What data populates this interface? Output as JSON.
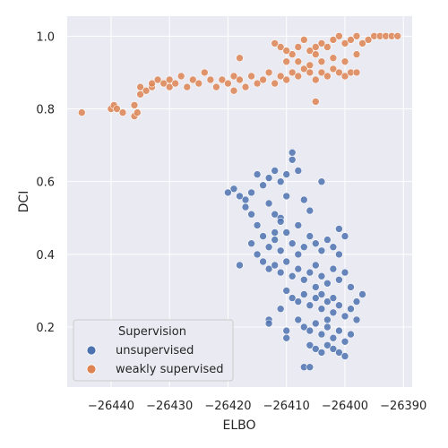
{
  "chart_data": {
    "type": "scatter",
    "title": "",
    "xlabel": "ELBO",
    "ylabel": "DCI",
    "xlim": [
      -26447.5,
      -26388.5
    ],
    "ylim": [
      0.035,
      1.055
    ],
    "xticks": [
      -26440,
      -26430,
      -26420,
      -26410,
      -26400,
      -26390
    ],
    "xtick_labels": [
      "−26440",
      "−26430",
      "−26420",
      "−26410",
      "−26400",
      "−26390"
    ],
    "yticks": [
      0.2,
      0.4,
      0.6,
      0.8,
      1.0
    ],
    "ytick_labels": [
      "0.2",
      "0.4",
      "0.6",
      "0.8",
      "1.0"
    ],
    "grid": true,
    "legend": {
      "title": "Supervision",
      "position": "lower-left"
    },
    "series": [
      {
        "name": "unsupervised",
        "color": "#4c72b0",
        "points": [
          [
            -26419.0,
            0.58
          ],
          [
            -26418.0,
            0.56
          ],
          [
            -26417.0,
            0.55
          ],
          [
            -26416.0,
            0.57
          ],
          [
            -26415.0,
            0.62
          ],
          [
            -26414.0,
            0.59
          ],
          [
            -26413.0,
            0.54
          ],
          [
            -26412.0,
            0.51
          ],
          [
            -26411.0,
            0.5
          ],
          [
            -26411.0,
            0.6
          ],
          [
            -26410.0,
            0.62
          ],
          [
            -26410.0,
            0.56
          ],
          [
            -26409.0,
            0.66
          ],
          [
            -26409.0,
            0.68
          ],
          [
            -26408.0,
            0.63
          ],
          [
            -26407.0,
            0.55
          ],
          [
            -26406.0,
            0.52
          ],
          [
            -26404.0,
            0.6
          ],
          [
            -26412.0,
            0.63
          ],
          [
            -26413.0,
            0.61
          ],
          [
            -26416.0,
            0.51
          ],
          [
            -26415.0,
            0.48
          ],
          [
            -26414.0,
            0.45
          ],
          [
            -26413.0,
            0.42
          ],
          [
            -26412.0,
            0.44
          ],
          [
            -26411.0,
            0.41
          ],
          [
            -26410.0,
            0.46
          ],
          [
            -26409.0,
            0.43
          ],
          [
            -26408.0,
            0.4
          ],
          [
            -26407.0,
            0.42
          ],
          [
            -26406.0,
            0.45
          ],
          [
            -26405.0,
            0.43
          ],
          [
            -26404.0,
            0.41
          ],
          [
            -26403.0,
            0.44
          ],
          [
            -26402.0,
            0.42
          ],
          [
            -26401.0,
            0.4
          ],
          [
            -26414.0,
            0.38
          ],
          [
            -26413.0,
            0.36
          ],
          [
            -26412.0,
            0.37
          ],
          [
            -26411.0,
            0.35
          ],
          [
            -26410.0,
            0.38
          ],
          [
            -26409.0,
            0.34
          ],
          [
            -26408.0,
            0.36
          ],
          [
            -26407.0,
            0.33
          ],
          [
            -26406.0,
            0.35
          ],
          [
            -26405.0,
            0.37
          ],
          [
            -26404.0,
            0.34
          ],
          [
            -26403.0,
            0.32
          ],
          [
            -26402.0,
            0.36
          ],
          [
            -26401.0,
            0.33
          ],
          [
            -26400.0,
            0.35
          ],
          [
            -26399.0,
            0.31
          ],
          [
            -26410.0,
            0.3
          ],
          [
            -26409.0,
            0.28
          ],
          [
            -26408.0,
            0.27
          ],
          [
            -26407.0,
            0.29
          ],
          [
            -26406.0,
            0.26
          ],
          [
            -26405.0,
            0.28
          ],
          [
            -26404.0,
            0.25
          ],
          [
            -26403.0,
            0.27
          ],
          [
            -26402.0,
            0.24
          ],
          [
            -26401.0,
            0.26
          ],
          [
            -26400.0,
            0.23
          ],
          [
            -26399.0,
            0.25
          ],
          [
            -26398.0,
            0.27
          ],
          [
            -26397.0,
            0.29
          ],
          [
            -26408.0,
            0.22
          ],
          [
            -26407.0,
            0.2
          ],
          [
            -26406.0,
            0.19
          ],
          [
            -26405.0,
            0.21
          ],
          [
            -26404.0,
            0.18
          ],
          [
            -26403.0,
            0.2
          ],
          [
            -26402.0,
            0.17
          ],
          [
            -26401.0,
            0.19
          ],
          [
            -26400.0,
            0.16
          ],
          [
            -26399.0,
            0.18
          ],
          [
            -26398.0,
            0.22
          ],
          [
            -26406.0,
            0.15
          ],
          [
            -26405.0,
            0.14
          ],
          [
            -26404.0,
            0.13
          ],
          [
            -26403.0,
            0.15
          ],
          [
            -26402.0,
            0.14
          ],
          [
            -26401.0,
            0.13
          ],
          [
            -26400.0,
            0.12
          ],
          [
            -26407.0,
            0.09
          ],
          [
            -26406.0,
            0.09
          ],
          [
            -26413.0,
            0.22
          ],
          [
            -26413.0,
            0.21
          ],
          [
            -26410.0,
            0.19
          ],
          [
            -26410.0,
            0.17
          ],
          [
            -26411.0,
            0.25
          ],
          [
            -26418.0,
            0.37
          ],
          [
            -26420.0,
            0.57
          ],
          [
            -26417.0,
            0.53
          ],
          [
            -26416.0,
            0.43
          ],
          [
            -26415.0,
            0.4
          ],
          [
            -26412.0,
            0.46
          ],
          [
            -26411.0,
            0.49
          ],
          [
            -26408.0,
            0.48
          ],
          [
            -26405.0,
            0.31
          ],
          [
            -26404.0,
            0.29
          ],
          [
            -26403.0,
            0.22
          ],
          [
            -26402.0,
            0.28
          ],
          [
            -26400.0,
            0.45
          ],
          [
            -26401.0,
            0.47
          ]
        ]
      },
      {
        "name": "weakly supervised",
        "color": "#dd8452",
        "points": [
          [
            -26445.0,
            0.79
          ],
          [
            -26440.0,
            0.8
          ],
          [
            -26439.5,
            0.81
          ],
          [
            -26439.0,
            0.8
          ],
          [
            -26438.0,
            0.79
          ],
          [
            -26436.0,
            0.78
          ],
          [
            -26435.5,
            0.79
          ],
          [
            -26436.0,
            0.81
          ],
          [
            -26435.0,
            0.84
          ],
          [
            -26435.0,
            0.86
          ],
          [
            -26434.0,
            0.85
          ],
          [
            -26433.0,
            0.86
          ],
          [
            -26433.0,
            0.87
          ],
          [
            -26432.0,
            0.88
          ],
          [
            -26431.0,
            0.87
          ],
          [
            -26430.0,
            0.86
          ],
          [
            -26430.0,
            0.88
          ],
          [
            -26429.0,
            0.87
          ],
          [
            -26428.0,
            0.89
          ],
          [
            -26427.0,
            0.86
          ],
          [
            -26426.0,
            0.88
          ],
          [
            -26425.0,
            0.87
          ],
          [
            -26424.0,
            0.9
          ],
          [
            -26423.0,
            0.88
          ],
          [
            -26422.0,
            0.86
          ],
          [
            -26421.0,
            0.88
          ],
          [
            -26420.0,
            0.87
          ],
          [
            -26419.0,
            0.89
          ],
          [
            -26418.0,
            0.88
          ],
          [
            -26417.0,
            0.86
          ],
          [
            -26416.0,
            0.89
          ],
          [
            -26415.0,
            0.87
          ],
          [
            -26414.0,
            0.88
          ],
          [
            -26413.0,
            0.9
          ],
          [
            -26412.0,
            0.87
          ],
          [
            -26411.0,
            0.89
          ],
          [
            -26410.0,
            0.88
          ],
          [
            -26409.0,
            0.9
          ],
          [
            -26408.0,
            0.89
          ],
          [
            -26407.0,
            0.91
          ],
          [
            -26406.0,
            0.9
          ],
          [
            -26405.0,
            0.88
          ],
          [
            -26404.0,
            0.9
          ],
          [
            -26403.0,
            0.89
          ],
          [
            -26402.0,
            0.91
          ],
          [
            -26401.0,
            0.9
          ],
          [
            -26400.0,
            0.89
          ],
          [
            -26399.0,
            0.9
          ],
          [
            -26398.0,
            0.9
          ],
          [
            -26418.0,
            0.94
          ],
          [
            -26412.0,
            0.98
          ],
          [
            -26411.0,
            0.97
          ],
          [
            -26410.0,
            0.93
          ],
          [
            -26409.0,
            0.95
          ],
          [
            -26408.0,
            0.97
          ],
          [
            -26407.0,
            0.99
          ],
          [
            -26406.0,
            0.96
          ],
          [
            -26405.0,
            0.95
          ],
          [
            -26404.0,
            0.98
          ],
          [
            -26403.0,
            0.97
          ],
          [
            -26402.0,
            0.99
          ],
          [
            -26401.0,
            1.0
          ],
          [
            -26400.0,
            0.98
          ],
          [
            -26399.0,
            0.99
          ],
          [
            -26398.0,
            1.0
          ],
          [
            -26397.0,
            0.98
          ],
          [
            -26396.0,
            0.99
          ],
          [
            -26395.0,
            1.0
          ],
          [
            -26394.0,
            1.0
          ],
          [
            -26393.0,
            1.0
          ],
          [
            -26392.0,
            1.0
          ],
          [
            -26391.0,
            1.0
          ],
          [
            -26406.0,
            0.92
          ],
          [
            -26404.0,
            0.93
          ],
          [
            -26402.0,
            0.94
          ],
          [
            -26400.0,
            0.93
          ],
          [
            -26398.0,
            0.95
          ],
          [
            -26405.0,
            0.82
          ],
          [
            -26419.0,
            0.85
          ],
          [
            -26408.0,
            0.93
          ],
          [
            -26410.0,
            0.96
          ],
          [
            -26405.0,
            0.97
          ]
        ]
      }
    ]
  }
}
